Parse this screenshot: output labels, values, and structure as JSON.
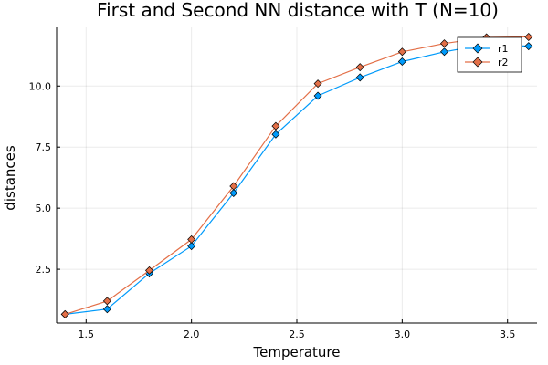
{
  "chart_data": {
    "type": "line",
    "title": "First and Second NN distance with T (N=10)",
    "xlabel": "Temperature",
    "ylabel": "distances",
    "xlim": [
      1.36,
      3.64
    ],
    "ylim": [
      0.3,
      12.4
    ],
    "xticks": [
      1.5,
      2.0,
      2.5,
      3.0,
      3.5
    ],
    "xtick_labels": [
      "1.5",
      "2.0",
      "2.5",
      "3.0",
      "3.5"
    ],
    "yticks": [
      2.5,
      5.0,
      7.5,
      10.0
    ],
    "ytick_labels": [
      "2.5",
      "5.0",
      "7.5",
      "10.0"
    ],
    "grid": true,
    "legend": "top-right",
    "x": [
      1.4,
      1.6,
      1.8,
      2.0,
      2.2,
      2.4,
      2.6,
      2.8,
      3.0,
      3.2,
      3.4,
      3.6
    ],
    "series": [
      {
        "name": "r1",
        "color": "#009AFA",
        "marker": "diamond",
        "values": [
          0.66,
          0.87,
          2.33,
          3.45,
          5.62,
          8.02,
          9.6,
          10.35,
          11.0,
          11.4,
          11.71,
          11.63
        ]
      },
      {
        "name": "r2",
        "color": "#E36F47",
        "marker": "diamond",
        "values": [
          0.66,
          1.2,
          2.45,
          3.72,
          5.9,
          8.36,
          10.1,
          10.77,
          11.4,
          11.74,
          11.99,
          12.01
        ]
      }
    ]
  }
}
